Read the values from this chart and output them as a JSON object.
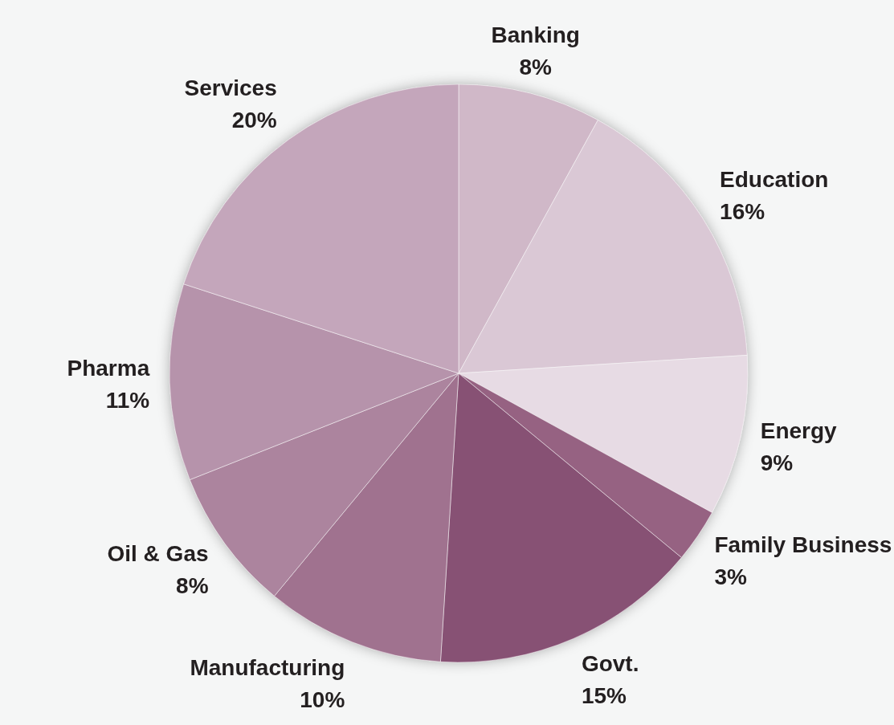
{
  "chart_data": {
    "type": "pie",
    "categories": [
      "Banking",
      "Education",
      "Energy",
      "Family Business",
      "Govt.",
      "Manufacturing",
      "Oil & Gas",
      "Pharma",
      "Services"
    ],
    "values": [
      8,
      16,
      9,
      3,
      15,
      10,
      8,
      11,
      20
    ],
    "colors": [
      "#d0b8c8",
      "#dac8d5",
      "#e7dbe4",
      "#966282",
      "#875174",
      "#a0728f",
      "#ac849e",
      "#b693ab",
      "#c4a6bb"
    ],
    "value_labels": [
      "8%",
      "16%",
      "9%",
      "3%",
      "15%",
      "10%",
      "8%",
      "11%",
      "20%"
    ]
  }
}
